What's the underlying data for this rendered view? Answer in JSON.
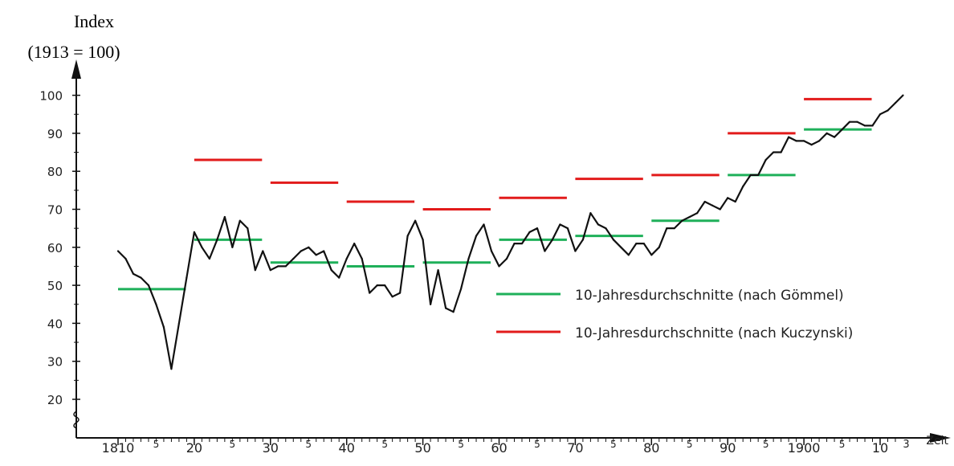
{
  "chart_data": {
    "type": "line",
    "ylabel_line1": "Index",
    "ylabel_line2": "(1913 = 100)",
    "xlabel": "Zeit",
    "xlim": [
      1810,
      1913
    ],
    "ylim": [
      20,
      100
    ],
    "y_ticks": [
      20,
      30,
      40,
      50,
      60,
      70,
      80,
      90,
      100
    ],
    "x_major_ticks": [
      {
        "year": 1810,
        "label": "1810"
      },
      {
        "year": 1820,
        "label": "20"
      },
      {
        "year": 1830,
        "label": "30"
      },
      {
        "year": 1840,
        "label": "40"
      },
      {
        "year": 1850,
        "label": "50"
      },
      {
        "year": 1860,
        "label": "60"
      },
      {
        "year": 1870,
        "label": "70"
      },
      {
        "year": 1880,
        "label": "80"
      },
      {
        "year": 1890,
        "label": "90"
      },
      {
        "year": 1900,
        "label": "1900"
      },
      {
        "year": 1910,
        "label": "10"
      },
      {
        "year": 1913,
        "label": "3"
      }
    ],
    "x_five_ticks": [
      {
        "year": 1815,
        "label": "5"
      },
      {
        "year": 1825,
        "label": "5"
      },
      {
        "year": 1835,
        "label": "5"
      },
      {
        "year": 1845,
        "label": "5"
      },
      {
        "year": 1855,
        "label": "5"
      },
      {
        "year": 1865,
        "label": "5"
      },
      {
        "year": 1875,
        "label": "5"
      },
      {
        "year": 1885,
        "label": "5"
      },
      {
        "year": 1895,
        "label": "5"
      },
      {
        "year": 1905,
        "label": "5"
      }
    ],
    "series": [
      {
        "color": "#111111",
        "x": [
          1810,
          1811,
          1812,
          1813,
          1814,
          1815,
          1816,
          1817,
          1818,
          1819,
          1820,
          1821,
          1822,
          1823,
          1824,
          1825,
          1826,
          1827,
          1828,
          1829,
          1830,
          1831,
          1832,
          1833,
          1834,
          1835,
          1836,
          1837,
          1838,
          1839,
          1840,
          1841,
          1842,
          1843,
          1844,
          1845,
          1846,
          1847,
          1848,
          1849,
          1850,
          1851,
          1852,
          1853,
          1854,
          1855,
          1856,
          1857,
          1858,
          1859,
          1860,
          1861,
          1862,
          1863,
          1864,
          1865,
          1866,
          1867,
          1868,
          1869,
          1870,
          1871,
          1872,
          1873,
          1874,
          1875,
          1876,
          1877,
          1878,
          1879,
          1880,
          1881,
          1882,
          1883,
          1884,
          1885,
          1886,
          1887,
          1888,
          1889,
          1890,
          1891,
          1892,
          1893,
          1894,
          1895,
          1896,
          1897,
          1898,
          1899,
          1900,
          1901,
          1902,
          1903,
          1904,
          1905,
          1906,
          1907,
          1908,
          1909,
          1910,
          1911,
          1912,
          1913
        ],
        "values": [
          59,
          57,
          53,
          52,
          50,
          45,
          39,
          28,
          40,
          52,
          64,
          60,
          57,
          62,
          68,
          60,
          67,
          65,
          54,
          59,
          54,
          55,
          55,
          57,
          59,
          60,
          58,
          59,
          54,
          52,
          57,
          61,
          57,
          48,
          50,
          50,
          47,
          48,
          63,
          67,
          62,
          45,
          54,
          44,
          43,
          49,
          57,
          63,
          66,
          59,
          55,
          57,
          61,
          61,
          64,
          65,
          59,
          62,
          66,
          65,
          59,
          62,
          69,
          66,
          65,
          62,
          60,
          58,
          61,
          61,
          58,
          60,
          65,
          65,
          67,
          68,
          69,
          72,
          71,
          70,
          73,
          72,
          76,
          79,
          79,
          83,
          85,
          85,
          89,
          88,
          88,
          87,
          88,
          90,
          89,
          91,
          93,
          93,
          92,
          92,
          95,
          96,
          98,
          100
        ]
      }
    ],
    "averages_goemmel": [
      {
        "from": 1810,
        "to": 1819,
        "value": 49
      },
      {
        "from": 1820,
        "to": 1829,
        "value": 62
      },
      {
        "from": 1830,
        "to": 1839,
        "value": 56
      },
      {
        "from": 1840,
        "to": 1849,
        "value": 55
      },
      {
        "from": 1850,
        "to": 1859,
        "value": 56
      },
      {
        "from": 1860,
        "to": 1869,
        "value": 62
      },
      {
        "from": 1870,
        "to": 1879,
        "value": 63
      },
      {
        "from": 1880,
        "to": 1889,
        "value": 67
      },
      {
        "from": 1890,
        "to": 1899,
        "value": 79
      },
      {
        "from": 1900,
        "to": 1909,
        "value": 91
      }
    ],
    "averages_kuczynski": [
      {
        "from": 1820,
        "to": 1829,
        "value": 83
      },
      {
        "from": 1830,
        "to": 1839,
        "value": 77
      },
      {
        "from": 1840,
        "to": 1849,
        "value": 72
      },
      {
        "from": 1850,
        "to": 1859,
        "value": 70
      },
      {
        "from": 1860,
        "to": 1869,
        "value": 73
      },
      {
        "from": 1870,
        "to": 1879,
        "value": 78
      },
      {
        "from": 1880,
        "to": 1889,
        "value": 79
      },
      {
        "from": 1890,
        "to": 1899,
        "value": 90
      },
      {
        "from": 1900,
        "to": 1909,
        "value": 99
      }
    ],
    "legend": {
      "placement": "center-right",
      "entries": [
        {
          "label": "10-Jahresdurchschnitte (nach Gömmel)",
          "color": "#1fb05a"
        },
        {
          "label": "10-Jahresdurchschnitte (nach Kuczynski)",
          "color": "#e21b1b"
        }
      ]
    },
    "colors": {
      "goemmel": "#1fb05a",
      "kuczynski": "#e21b1b",
      "line": "#111111",
      "axis": "#111111"
    }
  }
}
